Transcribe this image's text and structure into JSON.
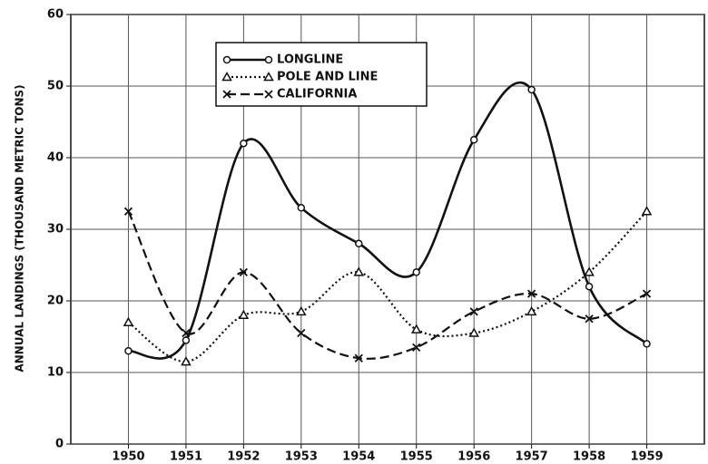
{
  "chart_data": {
    "type": "line",
    "y_label": "ANNUAL LANDINGS (THOUSAND METRIC TONS)",
    "x": [
      1950,
      1951,
      1952,
      1953,
      1954,
      1955,
      1956,
      1957,
      1958,
      1959
    ],
    "series": [
      {
        "name": "LONGLINE",
        "color": "#111111",
        "line_style": "solid",
        "marker": "circle",
        "values": [
          13,
          14.5,
          42,
          33,
          28,
          24,
          42.5,
          49.5,
          22,
          14
        ]
      },
      {
        "name": "POLE AND LINE",
        "color": "#111111",
        "line_style": "dotted",
        "marker": "triangle",
        "values": [
          17,
          11.5,
          18,
          18.5,
          24,
          16,
          15.5,
          18.5,
          24,
          32.5
        ]
      },
      {
        "name": "CALIFORNIA",
        "color": "#111111",
        "line_style": "dashed",
        "marker": "x",
        "values": [
          32.5,
          15.5,
          24,
          15.5,
          12,
          13.5,
          18.5,
          21,
          17.5,
          21
        ]
      }
    ],
    "xlim": [
      1949,
      1960
    ],
    "xticks": [
      1950,
      1951,
      1952,
      1953,
      1954,
      1955,
      1956,
      1957,
      1958,
      1959
    ],
    "ylim": [
      0,
      60
    ],
    "yticks": [
      0,
      10,
      20,
      30,
      40,
      50,
      60
    ],
    "grid": true,
    "smooth": true
  }
}
